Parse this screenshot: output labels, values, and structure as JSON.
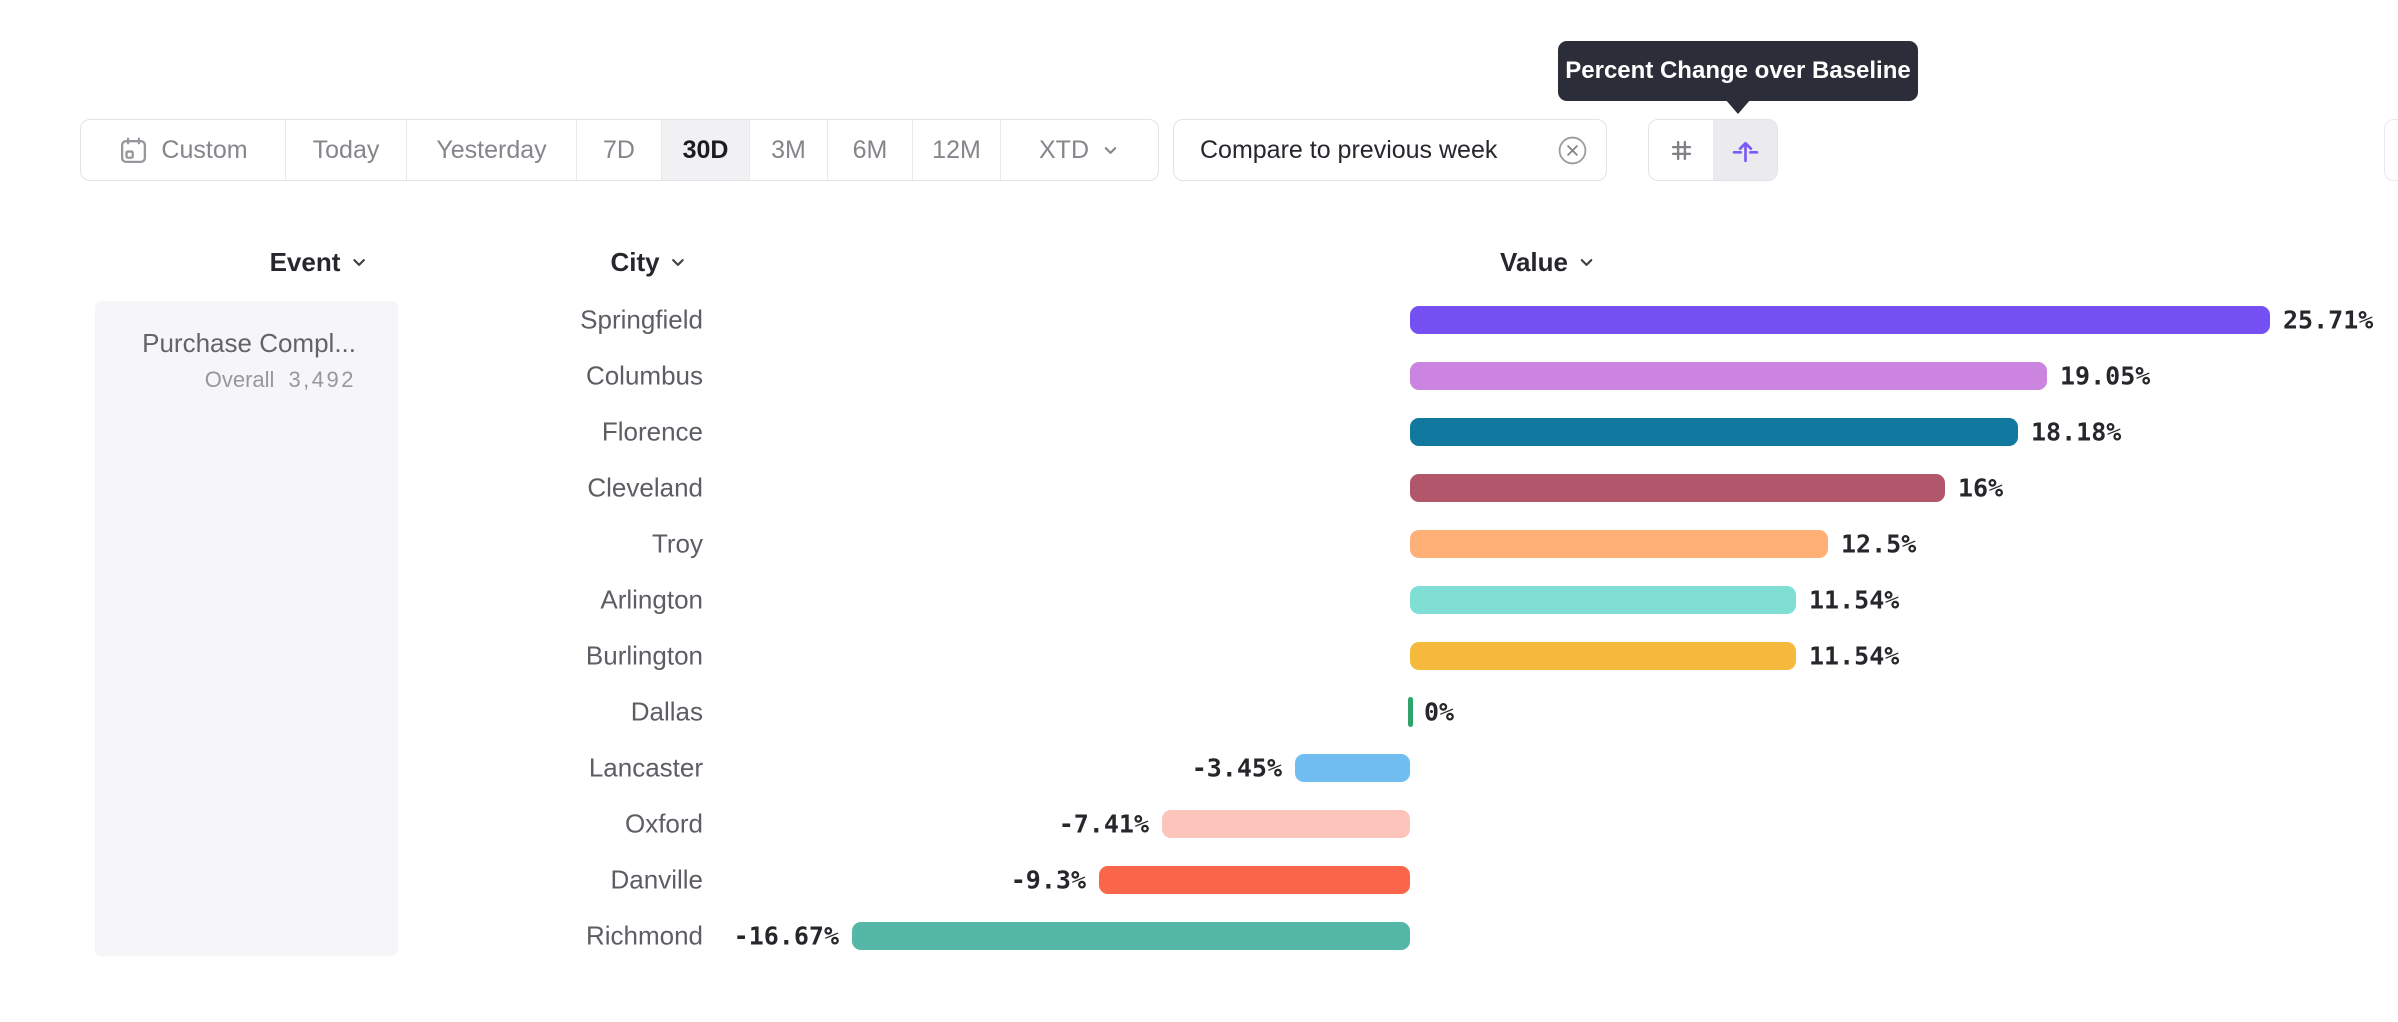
{
  "tooltip": {
    "text": "Percent Change over Baseline",
    "bg_color": "#2b2d38"
  },
  "toolbar": {
    "segments": [
      {
        "label": "Custom",
        "icon": "calendar-icon",
        "selected": false
      },
      {
        "label": "Today",
        "selected": false
      },
      {
        "label": "Yesterday",
        "selected": false
      },
      {
        "label": "7D",
        "selected": false
      },
      {
        "label": "30D",
        "selected": true
      },
      {
        "label": "3M",
        "selected": false
      },
      {
        "label": "6M",
        "selected": false
      },
      {
        "label": "12M",
        "selected": false
      },
      {
        "label": "XTD",
        "icon": "chevron-down-icon",
        "selected": false
      }
    ],
    "compare_chip": {
      "label": "Compare to previous week",
      "remove_icon": "circled-x-icon"
    },
    "view_toggle": [
      {
        "icon": "hash-icon",
        "selected": false
      },
      {
        "icon": "baseline-arrow-icon",
        "selected": true,
        "accent_color": "#7a5af8"
      }
    ]
  },
  "columns": {
    "event": {
      "label": "Event",
      "icon": "chevron-down-icon"
    },
    "city": {
      "label": "City",
      "icon": "chevron-down-icon"
    },
    "value": {
      "label": "Value",
      "icon": "chevron-down-icon"
    }
  },
  "event_panel": {
    "title": "Purchase Compl...",
    "overall_label": "Overall",
    "overall_value": "3,492"
  },
  "chart_data": {
    "type": "bar",
    "orientation": "horizontal",
    "title": "Percent Change over Baseline",
    "categories": [
      "Springfield",
      "Columbus",
      "Florence",
      "Cleveland",
      "Troy",
      "Arlington",
      "Burlington",
      "Dallas",
      "Lancaster",
      "Oxford",
      "Danville",
      "Richmond"
    ],
    "values": [
      25.71,
      19.05,
      18.18,
      16,
      12.5,
      11.54,
      11.54,
      0,
      -3.45,
      -7.41,
      -9.3,
      -16.67
    ],
    "value_labels": [
      "25.71%",
      "19.05%",
      "18.18%",
      "16%",
      "12.5%",
      "11.54%",
      "11.54%",
      "0%",
      "-3.45%",
      "-7.41%",
      "-9.3%",
      "-16.67%"
    ],
    "bar_colors": [
      "#7450f3",
      "#cb84e0",
      "#11789f",
      "#b2576b",
      "#ffb077",
      "#7fdfd5",
      "#f5ba3d",
      "#2ea36b",
      "#70bdf2",
      "#fcc4ba",
      "#f9664a",
      "#55b7a6"
    ],
    "unit": "%",
    "baseline": 0,
    "xlim": [
      -16.67,
      25.71
    ],
    "grid": false,
    "legend": false
  }
}
